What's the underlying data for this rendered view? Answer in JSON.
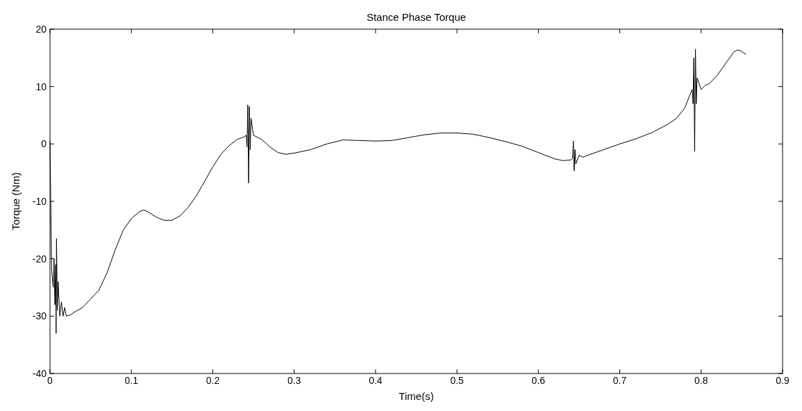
{
  "chart_data": {
    "type": "line",
    "title": "Stance Phase Torque",
    "xlabel": "Time(s)",
    "ylabel": "Torque (Nm)",
    "xlim": [
      0,
      0.9
    ],
    "xticks": [
      0,
      0.1,
      0.2,
      0.3,
      0.4,
      0.5,
      0.6,
      0.7,
      0.8,
      0.9
    ],
    "ylim": [
      -40,
      20
    ],
    "yticks": [
      -40,
      -30,
      -20,
      -10,
      0,
      10,
      20
    ],
    "grid": false,
    "series": [
      {
        "color": "#000000",
        "x": [
          0,
          0.002,
          0.004,
          0.005,
          0.006,
          0.007,
          0.0075,
          0.008,
          0.009,
          0.01,
          0.012,
          0.014,
          0.016,
          0.018,
          0.02,
          0.025,
          0.03,
          0.04,
          0.05,
          0.06,
          0.07,
          0.08,
          0.09,
          0.1,
          0.11,
          0.115,
          0.12,
          0.13,
          0.14,
          0.15,
          0.16,
          0.17,
          0.18,
          0.19,
          0.2,
          0.21,
          0.22,
          0.23,
          0.238,
          0.241,
          0.242,
          0.243,
          0.244,
          0.245,
          0.246,
          0.247,
          0.25,
          0.26,
          0.27,
          0.28,
          0.29,
          0.3,
          0.32,
          0.34,
          0.36,
          0.38,
          0.4,
          0.42,
          0.44,
          0.46,
          0.48,
          0.5,
          0.52,
          0.54,
          0.56,
          0.58,
          0.6,
          0.62,
          0.63,
          0.64,
          0.642,
          0.643,
          0.644,
          0.645,
          0.646,
          0.65,
          0.655,
          0.66,
          0.68,
          0.7,
          0.72,
          0.74,
          0.76,
          0.77,
          0.78,
          0.786,
          0.789,
          0.79,
          0.791,
          0.792,
          0.793,
          0.794,
          0.795,
          0.8,
          0.805,
          0.81,
          0.82,
          0.83,
          0.84,
          0.845,
          0.85,
          0.855
        ],
        "values": [
          0.5,
          -22,
          -25,
          -20,
          -28,
          -21,
          -33,
          -16.5,
          -29,
          -24,
          -30,
          -27.5,
          -30,
          -28.5,
          -30,
          -29.8,
          -29.3,
          -28.5,
          -27,
          -25.5,
          -22.5,
          -18.5,
          -15,
          -13,
          -11.8,
          -11.5,
          -11.8,
          -12.7,
          -13.3,
          -13.3,
          -12.5,
          -11,
          -9,
          -6.5,
          -4,
          -1.8,
          -0.3,
          0.8,
          1.2,
          1.5,
          -0.5,
          6.8,
          -6.8,
          6.5,
          -1,
          4.5,
          1.5,
          0.8,
          -0.5,
          -1.5,
          -1.8,
          -1.6,
          -1,
          0,
          0.7,
          0.6,
          0.5,
          0.6,
          1.1,
          1.6,
          1.9,
          1.9,
          1.7,
          1.1,
          0.4,
          -0.4,
          -1.5,
          -2.6,
          -2.9,
          -2.8,
          -2.5,
          0.5,
          -4.7,
          -1,
          -3.5,
          -2,
          -2.3,
          -2,
          -1,
          0,
          0.9,
          2,
          3.5,
          4.5,
          6.3,
          8.5,
          9.5,
          7,
          15,
          -1.3,
          16.5,
          7,
          11.5,
          9.5,
          10.2,
          10.5,
          12,
          14,
          16,
          16.4,
          16.1,
          15.6
        ]
      }
    ]
  }
}
